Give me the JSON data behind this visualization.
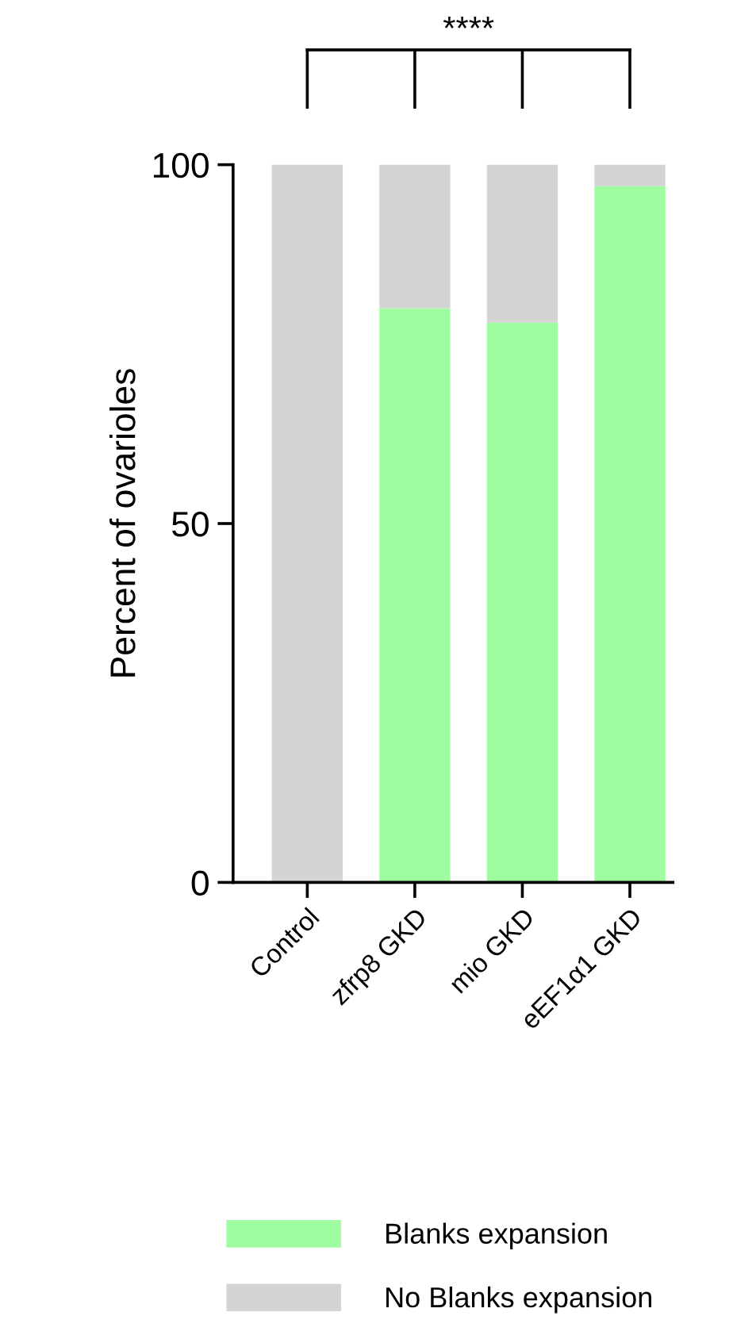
{
  "chart_data": {
    "type": "bar",
    "stacked": true,
    "ylabel": "Percent of ovarioles",
    "categories": [
      "Control",
      "zfrp8 GKD",
      "mio GKD",
      "eEF1α1 GKD"
    ],
    "series": [
      {
        "name": "Blanks expansion",
        "color": "#a0fca0",
        "values": [
          0,
          80,
          78,
          97
        ]
      },
      {
        "name": "No Blanks expansion",
        "color": "#d4d4d4",
        "values": [
          100,
          20,
          22,
          3
        ]
      }
    ],
    "ylim": [
      0,
      100
    ],
    "yticks": [
      0,
      50,
      100
    ],
    "grid": false,
    "legend": "bottom",
    "annotations": [
      "****"
    ]
  }
}
